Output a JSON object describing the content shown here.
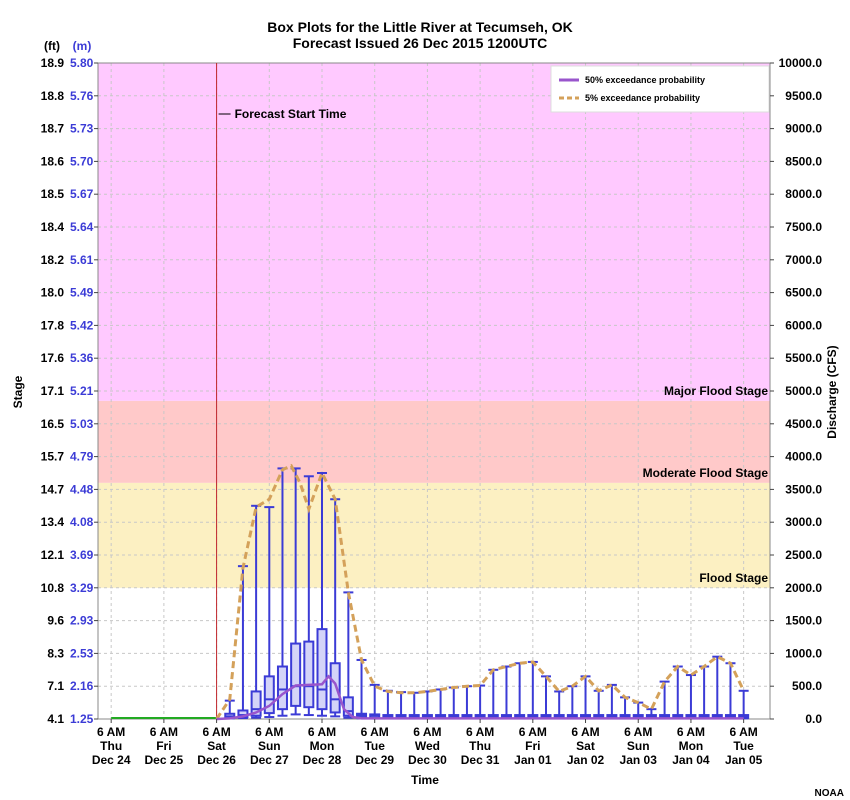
{
  "chart_data": {
    "type": "box",
    "title": "Box Plots for the Little River at Tecumseh, OK",
    "subtitle": "Forecast Issued 26 Dec 2015 1200UTC",
    "xlabel": "Time",
    "ylabel_left": "Stage",
    "ylabel_right": "Discharge (CFS)",
    "unit_ft": "(ft)",
    "unit_m": "(m)",
    "credit": "NOAA",
    "forecast_start_label": "Forecast Start Time",
    "forecast_start_hours": 48,
    "hours_total": 270,
    "y_right_range": [
      0,
      10000
    ],
    "y_right_ticks": [
      "0.0",
      "500.0",
      "1000.0",
      "1500.0",
      "2000.0",
      "2500.0",
      "3000.0",
      "3500.0",
      "4000.0",
      "4500.0",
      "5000.0",
      "5500.0",
      "6000.0",
      "6500.0",
      "7000.0",
      "7500.0",
      "8000.0",
      "8500.0",
      "9000.0",
      "9500.0",
      "10000.0"
    ],
    "y_ft_ticks": [
      "4.1",
      "7.1",
      "8.3",
      "9.6",
      "10.8",
      "12.1",
      "13.4",
      "14.7",
      "15.7",
      "16.5",
      "17.1",
      "17.6",
      "17.8",
      "18.0",
      "18.2",
      "18.4",
      "18.5",
      "18.6",
      "18.7",
      "18.8",
      "18.9"
    ],
    "y_m_ticks": [
      "1.25",
      "2.16",
      "2.53",
      "2.93",
      "3.29",
      "3.69",
      "4.08",
      "4.48",
      "4.79",
      "5.03",
      "5.21",
      "5.36",
      "5.42",
      "5.49",
      "5.61",
      "5.64",
      "5.67",
      "5.70",
      "5.73",
      "5.76",
      "5.80"
    ],
    "x_ticks": [
      {
        "hour": 0,
        "time": "6 AM",
        "day": "Thu",
        "date": "Dec 24"
      },
      {
        "hour": 24,
        "time": "6 AM",
        "day": "Fri",
        "date": "Dec 25"
      },
      {
        "hour": 48,
        "time": "6 AM",
        "day": "Sat",
        "date": "Dec 26"
      },
      {
        "hour": 72,
        "time": "6 AM",
        "day": "Sun",
        "date": "Dec 27"
      },
      {
        "hour": 96,
        "time": "6 AM",
        "day": "Mon",
        "date": "Dec 28"
      },
      {
        "hour": 120,
        "time": "6 AM",
        "day": "Tue",
        "date": "Dec 29"
      },
      {
        "hour": 144,
        "time": "6 AM",
        "day": "Wed",
        "date": "Dec 30"
      },
      {
        "hour": 168,
        "time": "6 AM",
        "day": "Thu",
        "date": "Dec 31"
      },
      {
        "hour": 192,
        "time": "6 AM",
        "day": "Fri",
        "date": "Jan 01"
      },
      {
        "hour": 216,
        "time": "6 AM",
        "day": "Sat",
        "date": "Jan 02"
      },
      {
        "hour": 240,
        "time": "6 AM",
        "day": "Sun",
        "date": "Jan 03"
      },
      {
        "hour": 264,
        "time": "6 AM",
        "day": "Mon",
        "date": "Jan 04"
      },
      {
        "hour": 288,
        "time": "6 AM",
        "day": "Tue",
        "date": "Jan 05"
      }
    ],
    "bands": [
      {
        "name": "Flood Stage",
        "from": 2000,
        "to": 2850,
        "color": "#fcf0c2"
      },
      {
        "name": "Moderate Flood Stage",
        "from": 3600,
        "to": 3600,
        "color": "#fcf0c2"
      },
      {
        "name": "Moderate Flood Stage",
        "from": 3600,
        "to": 4850,
        "color": "#ffc9c9"
      },
      {
        "name": "Major Flood Stage",
        "from": 4850,
        "to": 10000,
        "color": "#ffc9ff"
      }
    ],
    "band_labels": [
      "Flood Stage",
      "Moderate Flood Stage",
      "Major Flood Stage"
    ],
    "legend": [
      {
        "name": "50% exceedance probability",
        "color": "#9955cc",
        "style": "solid"
      },
      {
        "name": "5% exceedance probability",
        "color": "#d4a15a",
        "style": "dashed"
      }
    ],
    "observed": [
      [
        0,
        0
      ],
      [
        48,
        0
      ]
    ],
    "boxes": [
      {
        "h": 54,
        "min": 10,
        "q1": 20,
        "med": 40,
        "q3": 80,
        "max": 280
      },
      {
        "h": 60,
        "min": 15,
        "q1": 30,
        "med": 60,
        "q3": 130,
        "max": 2330
      },
      {
        "h": 66,
        "min": 20,
        "q1": 50,
        "med": 150,
        "q3": 420,
        "max": 3250
      },
      {
        "h": 72,
        "min": 30,
        "q1": 90,
        "med": 300,
        "q3": 650,
        "max": 3230
      },
      {
        "h": 78,
        "min": 50,
        "q1": 150,
        "med": 450,
        "q3": 800,
        "max": 3820
      },
      {
        "h": 84,
        "min": 70,
        "q1": 200,
        "med": 500,
        "q3": 1150,
        "max": 3820
      },
      {
        "h": 90,
        "min": 60,
        "q1": 180,
        "med": 500,
        "q3": 1180,
        "max": 3700
      },
      {
        "h": 96,
        "min": 50,
        "q1": 150,
        "med": 450,
        "q3": 1370,
        "max": 3750
      },
      {
        "h": 102,
        "min": 40,
        "q1": 100,
        "med": 300,
        "q3": 850,
        "max": 3350
      },
      {
        "h": 108,
        "min": 20,
        "q1": 50,
        "med": 120,
        "q3": 330,
        "max": 1930
      },
      {
        "h": 114,
        "min": 10,
        "q1": 30,
        "med": 60,
        "q3": 80,
        "max": 900
      },
      {
        "h": 120,
        "min": 10,
        "q1": 20,
        "med": 50,
        "q3": 70,
        "max": 520
      },
      {
        "h": 126,
        "min": 10,
        "q1": 20,
        "med": 40,
        "q3": 60,
        "max": 430
      },
      {
        "h": 132,
        "min": 10,
        "q1": 20,
        "med": 40,
        "q3": 60,
        "max": 410
      },
      {
        "h": 138,
        "min": 10,
        "q1": 20,
        "med": 40,
        "q3": 60,
        "max": 400
      },
      {
        "h": 144,
        "min": 10,
        "q1": 20,
        "med": 40,
        "q3": 60,
        "max": 420
      },
      {
        "h": 150,
        "min": 10,
        "q1": 20,
        "med": 40,
        "q3": 60,
        "max": 450
      },
      {
        "h": 156,
        "min": 10,
        "q1": 20,
        "med": 40,
        "q3": 60,
        "max": 480
      },
      {
        "h": 162,
        "min": 10,
        "q1": 20,
        "med": 40,
        "q3": 60,
        "max": 500
      },
      {
        "h": 168,
        "min": 10,
        "q1": 20,
        "med": 40,
        "q3": 60,
        "max": 510
      },
      {
        "h": 174,
        "min": 10,
        "q1": 20,
        "med": 40,
        "q3": 60,
        "max": 750
      },
      {
        "h": 180,
        "min": 10,
        "q1": 20,
        "med": 40,
        "q3": 60,
        "max": 800
      },
      {
        "h": 186,
        "min": 10,
        "q1": 20,
        "med": 40,
        "q3": 60,
        "max": 850
      },
      {
        "h": 192,
        "min": 10,
        "q1": 20,
        "med": 40,
        "q3": 60,
        "max": 870
      },
      {
        "h": 198,
        "min": 10,
        "q1": 20,
        "med": 40,
        "q3": 60,
        "max": 650
      },
      {
        "h": 204,
        "min": 10,
        "q1": 20,
        "med": 40,
        "q3": 60,
        "max": 420
      },
      {
        "h": 210,
        "min": 10,
        "q1": 20,
        "med": 40,
        "q3": 60,
        "max": 500
      },
      {
        "h": 216,
        "min": 10,
        "q1": 20,
        "med": 40,
        "q3": 60,
        "max": 650
      },
      {
        "h": 222,
        "min": 10,
        "q1": 20,
        "med": 40,
        "q3": 60,
        "max": 430
      },
      {
        "h": 228,
        "min": 10,
        "q1": 20,
        "med": 40,
        "q3": 60,
        "max": 520
      },
      {
        "h": 234,
        "min": 10,
        "q1": 20,
        "med": 40,
        "q3": 60,
        "max": 330
      },
      {
        "h": 240,
        "min": 10,
        "q1": 20,
        "med": 40,
        "q3": 60,
        "max": 250
      },
      {
        "h": 246,
        "min": 10,
        "q1": 20,
        "med": 40,
        "q3": 60,
        "max": 150
      },
      {
        "h": 252,
        "min": 10,
        "q1": 20,
        "med": 40,
        "q3": 60,
        "max": 570
      },
      {
        "h": 258,
        "min": 10,
        "q1": 20,
        "med": 40,
        "q3": 60,
        "max": 800
      },
      {
        "h": 264,
        "min": 10,
        "q1": 20,
        "med": 40,
        "q3": 60,
        "max": 670
      },
      {
        "h": 270,
        "min": 10,
        "q1": 20,
        "med": 40,
        "q3": 60,
        "max": 800
      },
      {
        "h": 276,
        "min": 10,
        "q1": 20,
        "med": 40,
        "q3": 60,
        "max": 950
      },
      {
        "h": 282,
        "min": 10,
        "q1": 20,
        "med": 40,
        "q3": 60,
        "max": 850
      },
      {
        "h": 288,
        "min": 10,
        "q1": 20,
        "med": 40,
        "q3": 60,
        "max": 430
      }
    ],
    "series_50": [
      [
        48,
        0
      ],
      [
        54,
        10
      ],
      [
        60,
        40
      ],
      [
        66,
        100
      ],
      [
        72,
        200
      ],
      [
        78,
        380
      ],
      [
        84,
        510
      ],
      [
        90,
        520
      ],
      [
        96,
        530
      ],
      [
        99,
        650
      ],
      [
        102,
        540
      ],
      [
        106,
        150
      ],
      [
        110,
        30
      ],
      [
        114,
        10
      ],
      [
        288,
        10
      ]
    ],
    "series_5": [
      [
        48,
        0
      ],
      [
        54,
        300
      ],
      [
        60,
        2300
      ],
      [
        66,
        3230
      ],
      [
        72,
        3350
      ],
      [
        78,
        3800
      ],
      [
        82,
        3860
      ],
      [
        86,
        3600
      ],
      [
        90,
        3200
      ],
      [
        96,
        3750
      ],
      [
        102,
        3350
      ],
      [
        108,
        1930
      ],
      [
        114,
        900
      ],
      [
        120,
        500
      ],
      [
        126,
        420
      ],
      [
        132,
        400
      ],
      [
        138,
        400
      ],
      [
        144,
        420
      ],
      [
        150,
        450
      ],
      [
        156,
        480
      ],
      [
        162,
        500
      ],
      [
        168,
        510
      ],
      [
        174,
        750
      ],
      [
        180,
        800
      ],
      [
        186,
        850
      ],
      [
        192,
        870
      ],
      [
        198,
        650
      ],
      [
        204,
        420
      ],
      [
        210,
        500
      ],
      [
        216,
        650
      ],
      [
        222,
        430
      ],
      [
        228,
        520
      ],
      [
        234,
        330
      ],
      [
        240,
        250
      ],
      [
        246,
        150
      ],
      [
        252,
        570
      ],
      [
        258,
        800
      ],
      [
        264,
        670
      ],
      [
        270,
        800
      ],
      [
        276,
        950
      ],
      [
        282,
        850
      ],
      [
        288,
        430
      ]
    ]
  }
}
